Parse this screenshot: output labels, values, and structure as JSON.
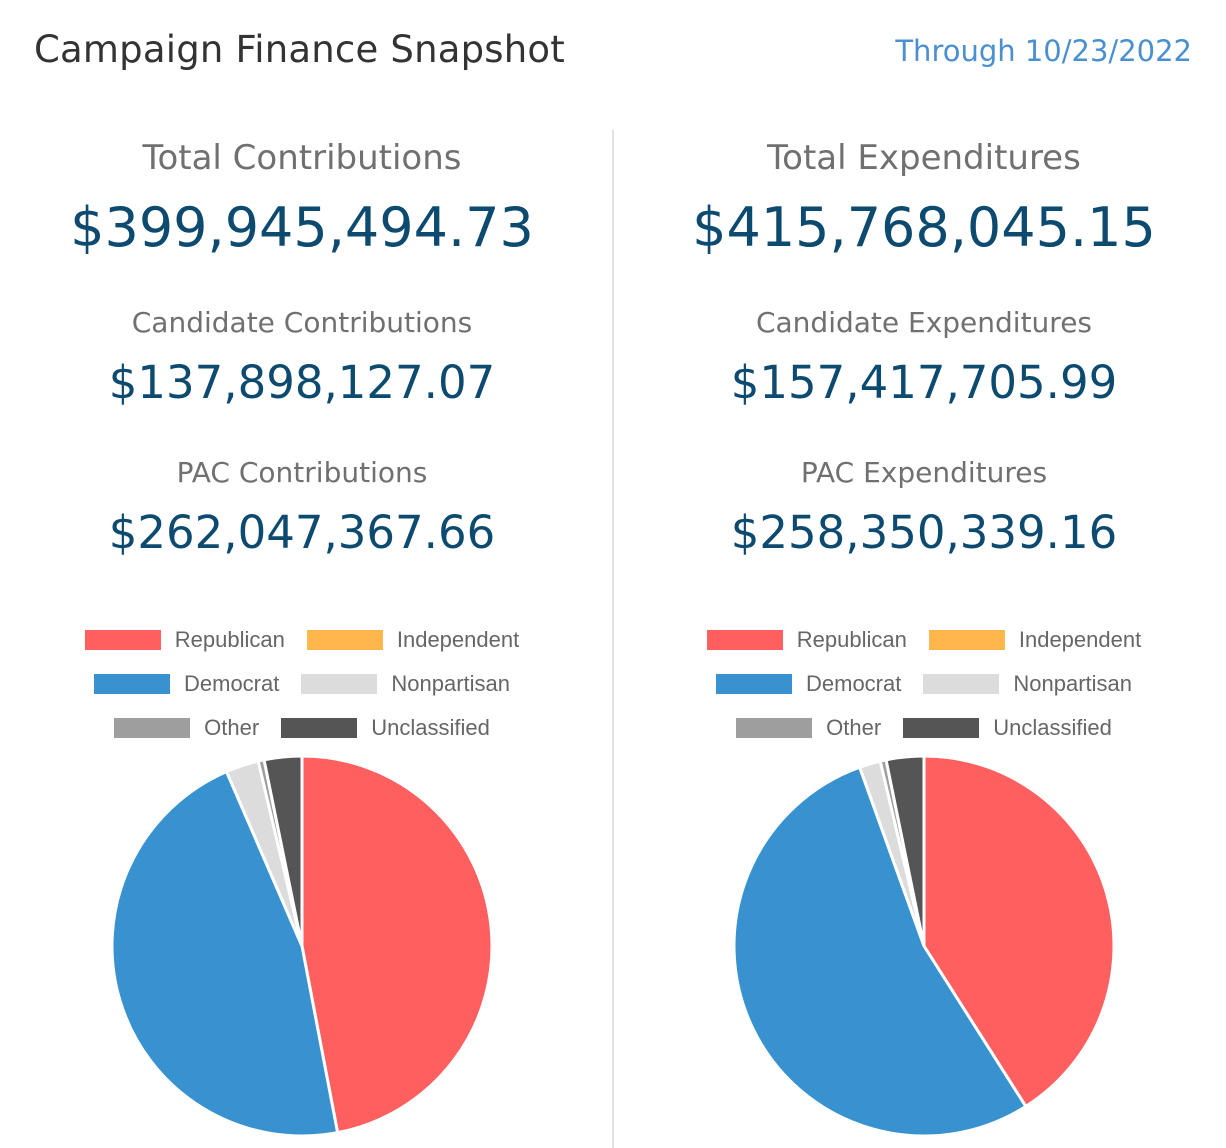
{
  "header": {
    "title": "Campaign Finance Snapshot",
    "through": "Through 10/23/2022"
  },
  "contributions": {
    "total_label": "Total Contributions",
    "total_value": "$399,945,494.73",
    "candidate_label": "Candidate Contributions",
    "candidate_value": "$137,898,127.07",
    "pac_label": "PAC Contributions",
    "pac_value": "$262,047,367.66"
  },
  "expenditures": {
    "total_label": "Total Expenditures",
    "total_value": "$415,768,045.15",
    "candidate_label": "Candidate Expenditures",
    "candidate_value": "$157,417,705.99",
    "pac_label": "PAC Expenditures",
    "pac_value": "$258,350,339.16"
  },
  "legend": {
    "republican": "Republican",
    "independent": "Independent",
    "democrat": "Democrat",
    "nonpartisan": "Nonpartisan",
    "other": "Other",
    "unclassified": "Unclassified"
  },
  "colors": {
    "Republican": "#ff5f5f",
    "Independent": "#ffb74d",
    "Democrat": "#3792cf",
    "Nonpartisan": "#dcdcdc",
    "Other": "#9e9e9e",
    "Unclassified": "#555555"
  },
  "chart_data": [
    {
      "type": "pie",
      "categories": [
        "Republican",
        "Independent",
        "Democrat",
        "Nonpartisan",
        "Other",
        "Unclassified"
      ],
      "values": [
        47.0,
        0.0,
        46.5,
        2.8,
        0.5,
        3.2
      ]
    },
    {
      "type": "pie",
      "categories": [
        "Republican",
        "Independent",
        "Democrat",
        "Nonpartisan",
        "Other",
        "Unclassified"
      ],
      "values": [
        41.0,
        0.0,
        53.5,
        1.8,
        0.5,
        3.2
      ]
    }
  ]
}
